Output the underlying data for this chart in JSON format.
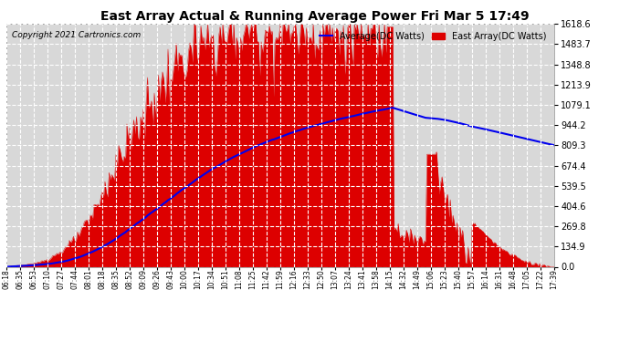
{
  "title": "East Array Actual & Running Average Power Fri Mar 5 17:49",
  "copyright": "Copyright 2021 Cartronics.com",
  "legend_avg": "Average(DC Watts)",
  "legend_east": "East Array(DC Watts)",
  "ylabel_right_ticks": [
    0.0,
    134.9,
    269.8,
    404.6,
    539.5,
    674.4,
    809.3,
    944.2,
    1079.1,
    1213.9,
    1348.8,
    1483.7,
    1618.6
  ],
  "ymax": 1618.6,
  "background_color": "#ffffff",
  "plot_bg_color": "#d8d8d8",
  "grid_color": "#ffffff",
  "red_color": "#dd0000",
  "blue_color": "#0000ee",
  "xtick_labels": [
    "06:18",
    "06:35",
    "06:53",
    "07:10",
    "07:27",
    "07:44",
    "08:01",
    "08:18",
    "08:35",
    "08:52",
    "09:09",
    "09:26",
    "09:43",
    "10:00",
    "10:17",
    "10:34",
    "10:51",
    "11:08",
    "11:25",
    "11:42",
    "11:59",
    "12:16",
    "12:33",
    "12:50",
    "13:07",
    "13:24",
    "13:41",
    "13:58",
    "14:15",
    "14:32",
    "14:49",
    "15:06",
    "15:23",
    "15:40",
    "15:57",
    "16:14",
    "16:31",
    "16:48",
    "17:05",
    "17:22",
    "17:39"
  ],
  "east_array": [
    0,
    10,
    20,
    50,
    100,
    180,
    300,
    480,
    680,
    850,
    1000,
    1150,
    1280,
    1380,
    1450,
    1490,
    1510,
    1520,
    1525,
    1530,
    1530,
    1530,
    1528,
    1525,
    1520,
    1518,
    1515,
    1510,
    1600,
    200,
    100,
    750,
    600,
    500,
    400,
    300,
    200,
    100,
    50,
    20,
    0
  ],
  "east_array_dense": true,
  "num_dense": 400
}
